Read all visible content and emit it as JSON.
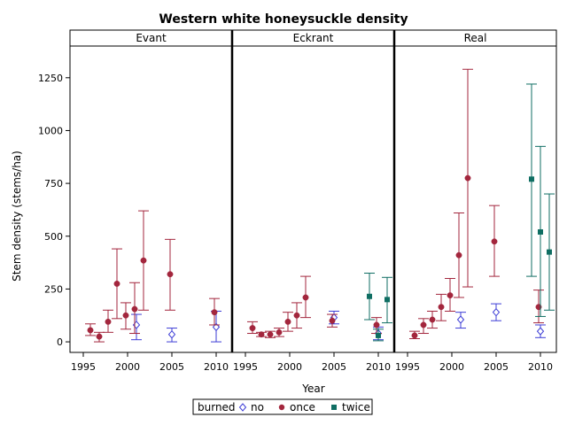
{
  "chart_data": {
    "type": "scatter",
    "title": "Western white honeysuckle density",
    "xlabel": "Year",
    "ylabel": "Stem density (stems/ha)",
    "ylim": [
      -50,
      1400
    ],
    "yticks": [
      0,
      250,
      500,
      750,
      1000,
      1250
    ],
    "ytick_labels": [
      "0",
      "250",
      "500",
      "750",
      "1000",
      "1250"
    ],
    "xlim": [
      1993.5,
      2011.8
    ],
    "xticks": [
      1995,
      2000,
      2005,
      2010
    ],
    "xtick_labels": [
      "1995",
      "2000",
      "2005",
      "2010"
    ],
    "grid": false,
    "legend": {
      "title": "burned",
      "position": "bottom",
      "entries": [
        {
          "label": "no",
          "marker": "diamond-open",
          "color": "#3d3dd6"
        },
        {
          "label": "once",
          "marker": "circle",
          "color": "#a3263d"
        },
        {
          "label": "twice",
          "marker": "square",
          "color": "#0f6e63"
        }
      ]
    },
    "colors": {
      "no": "#3d3dd6",
      "once": "#a3263d",
      "twice": "#0f6e63"
    },
    "panels": [
      {
        "name": "Evant",
        "series": [
          {
            "name": "no",
            "points": [
              {
                "x": 2001,
                "y": 80,
                "low": 10,
                "high": 130
              },
              {
                "x": 2005,
                "y": 35,
                "low": 0,
                "high": 65
              },
              {
                "x": 2010,
                "y": 70,
                "low": 0,
                "high": 145
              }
            ]
          },
          {
            "name": "once",
            "points": [
              {
                "x": 1996,
                "y": 55,
                "low": 30,
                "high": 85
              },
              {
                "x": 1997,
                "y": 25,
                "low": 0,
                "high": 45
              },
              {
                "x": 1998,
                "y": 95,
                "low": 45,
                "high": 150
              },
              {
                "x": 1999,
                "y": 275,
                "low": 110,
                "high": 440
              },
              {
                "x": 2000,
                "y": 125,
                "low": 60,
                "high": 185
              },
              {
                "x": 2001,
                "y": 155,
                "low": 40,
                "high": 280
              },
              {
                "x": 2002,
                "y": 385,
                "low": 150,
                "high": 620
              },
              {
                "x": 2005,
                "y": 320,
                "low": 150,
                "high": 485
              },
              {
                "x": 2010,
                "y": 140,
                "low": 80,
                "high": 205
              }
            ]
          }
        ]
      },
      {
        "name": "Eckrant",
        "series": [
          {
            "name": "no",
            "points": [
              {
                "x": 2005,
                "y": 115,
                "low": 85,
                "high": 145
              },
              {
                "x": 2010,
                "y": 40,
                "low": 10,
                "high": 70
              }
            ]
          },
          {
            "name": "once",
            "points": [
              {
                "x": 1996,
                "y": 65,
                "low": 40,
                "high": 95
              },
              {
                "x": 1997,
                "y": 35,
                "low": 25,
                "high": 45
              },
              {
                "x": 1998,
                "y": 35,
                "low": 20,
                "high": 50
              },
              {
                "x": 1999,
                "y": 45,
                "low": 25,
                "high": 65
              },
              {
                "x": 2000,
                "y": 95,
                "low": 50,
                "high": 140
              },
              {
                "x": 2001,
                "y": 125,
                "low": 65,
                "high": 185
              },
              {
                "x": 2002,
                "y": 210,
                "low": 115,
                "high": 310
              },
              {
                "x": 2005,
                "y": 100,
                "low": 70,
                "high": 130
              },
              {
                "x": 2010,
                "y": 80,
                "low": 40,
                "high": 115
              }
            ]
          },
          {
            "name": "twice",
            "points": [
              {
                "x": 2009,
                "y": 215,
                "low": 105,
                "high": 325
              },
              {
                "x": 2010,
                "y": 30,
                "low": 5,
                "high": 60
              },
              {
                "x": 2011,
                "y": 200,
                "low": 90,
                "high": 305
              }
            ]
          }
        ]
      },
      {
        "name": "Real",
        "series": [
          {
            "name": "no",
            "points": [
              {
                "x": 2001,
                "y": 105,
                "low": 65,
                "high": 140
              },
              {
                "x": 2005,
                "y": 140,
                "low": 100,
                "high": 180
              },
              {
                "x": 2010,
                "y": 50,
                "low": 20,
                "high": 80
              }
            ]
          },
          {
            "name": "once",
            "points": [
              {
                "x": 1996,
                "y": 30,
                "low": 15,
                "high": 50
              },
              {
                "x": 1997,
                "y": 80,
                "low": 40,
                "high": 110
              },
              {
                "x": 1998,
                "y": 105,
                "low": 65,
                "high": 145
              },
              {
                "x": 1999,
                "y": 165,
                "low": 100,
                "high": 225
              },
              {
                "x": 2000,
                "y": 220,
                "low": 145,
                "high": 300
              },
              {
                "x": 2001,
                "y": 410,
                "low": 210,
                "high": 610
              },
              {
                "x": 2002,
                "y": 775,
                "low": 260,
                "high": 1290
              },
              {
                "x": 2005,
                "y": 475,
                "low": 310,
                "high": 645
              },
              {
                "x": 2010,
                "y": 165,
                "low": 90,
                "high": 245
              }
            ]
          },
          {
            "name": "twice",
            "points": [
              {
                "x": 2009,
                "y": 770,
                "low": 310,
                "high": 1220
              },
              {
                "x": 2010,
                "y": 520,
                "low": 120,
                "high": 925
              },
              {
                "x": 2011,
                "y": 425,
                "low": 150,
                "high": 700
              }
            ]
          }
        ]
      }
    ]
  }
}
